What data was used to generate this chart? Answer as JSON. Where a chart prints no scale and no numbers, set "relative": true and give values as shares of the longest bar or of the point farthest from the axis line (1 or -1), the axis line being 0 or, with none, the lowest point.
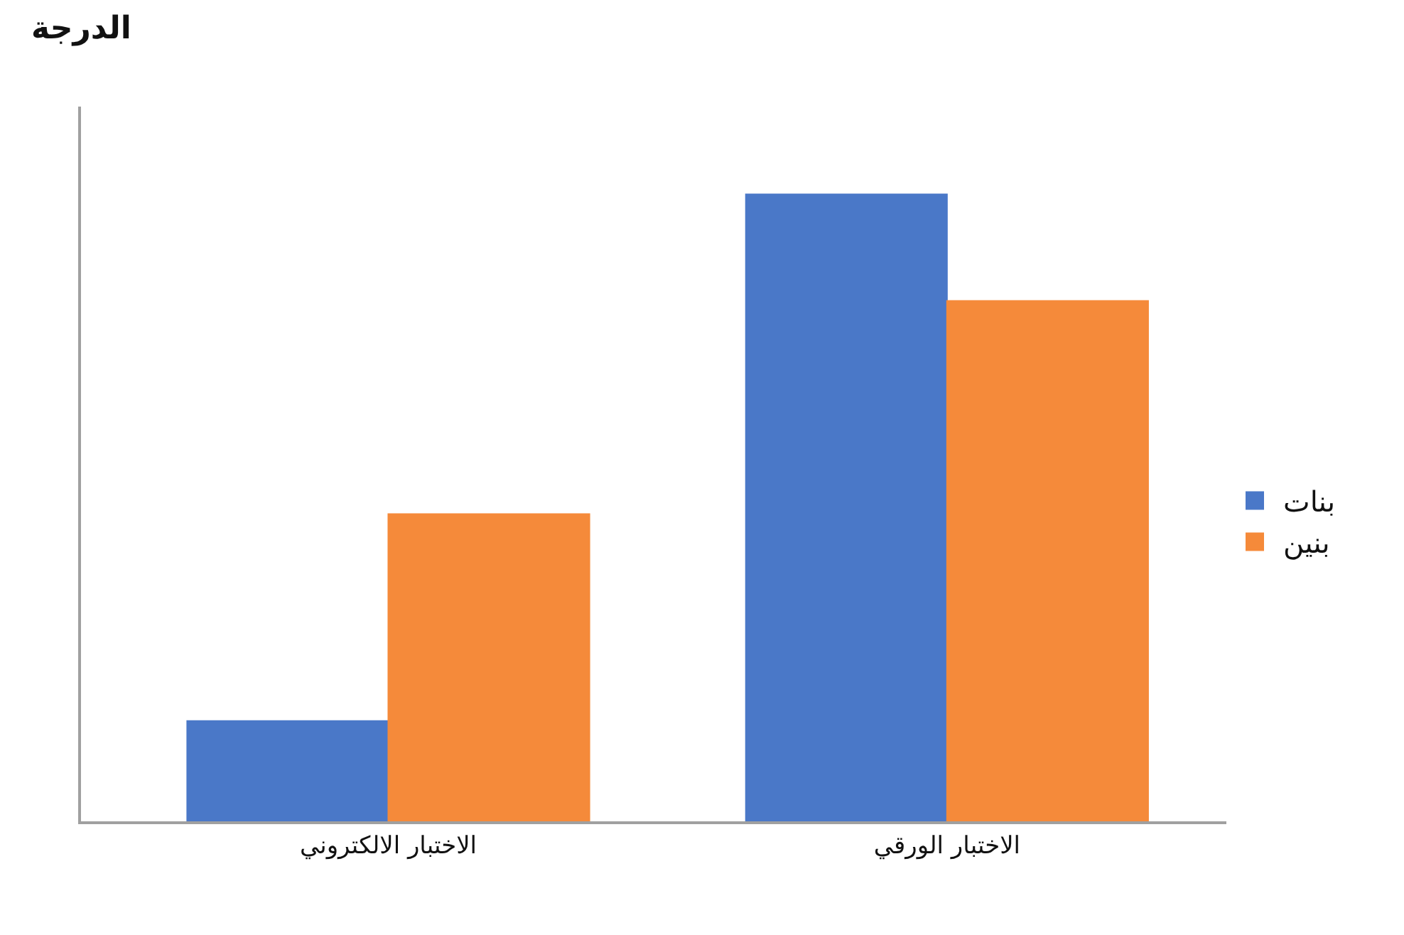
{
  "chart_data": {
    "type": "bar",
    "ylabel": "الدرجة",
    "relative": true,
    "categories": [
      "الاختبار الالكتروني",
      "الاختبار الورقي"
    ],
    "series": [
      {
        "name": "بنات",
        "color": "#4a78c8",
        "values": [
          0.16,
          1
        ]
      },
      {
        "name": "بنين",
        "color": "#f58a3a",
        "values": [
          0.49,
          0.83
        ]
      }
    ],
    "legend": "right"
  }
}
